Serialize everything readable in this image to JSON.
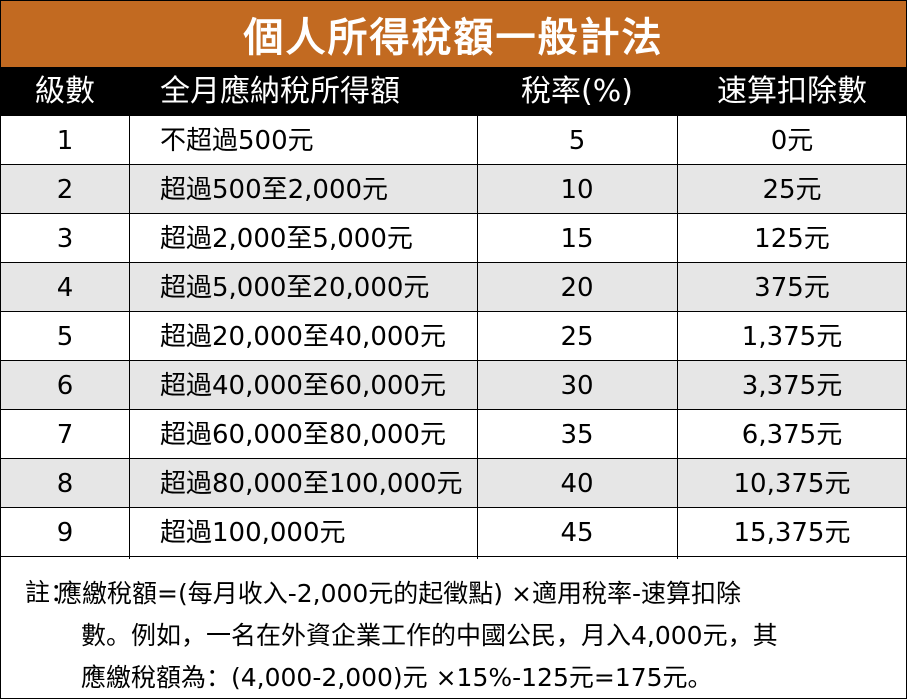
{
  "colors": {
    "title_bg": "#c26a21",
    "header_bg": "#000000",
    "stripe": "#e6e6e6",
    "text": "#000000"
  },
  "title": "個人所得稅額一般計法",
  "headers": [
    "級數",
    "全月應納稅所得額",
    "稅率(%)",
    "速算扣除數"
  ],
  "rows": [
    [
      "1",
      "不超過500元",
      "5",
      "0元"
    ],
    [
      "2",
      "超過500至2,000元",
      "10",
      "25元"
    ],
    [
      "3",
      "超過2,000至5,000元",
      "15",
      "125元"
    ],
    [
      "4",
      "超過5,000至20,000元",
      "20",
      "375元"
    ],
    [
      "5",
      "超過20,000至40,000元",
      "25",
      "1,375元"
    ],
    [
      "6",
      "超過40,000至60,000元",
      "30",
      "3,375元"
    ],
    [
      "7",
      "超過60,000至80,000元",
      "35",
      "6,375元"
    ],
    [
      "8",
      "超過80,000至100,000元",
      "40",
      "10,375元"
    ],
    [
      "9",
      "超過100,000元",
      "45",
      "15,375元"
    ]
  ],
  "note": {
    "label": "註：",
    "lines": [
      "應繳稅額=(每月收入-2,000元的起徵點) ×適用稅率-速算扣除",
      "數。例如，一名在外資企業工作的中國公民，月入4,000元，其",
      "應繳稅額為：(4,000-2,000)元 ×15%-125元=175元。"
    ]
  }
}
